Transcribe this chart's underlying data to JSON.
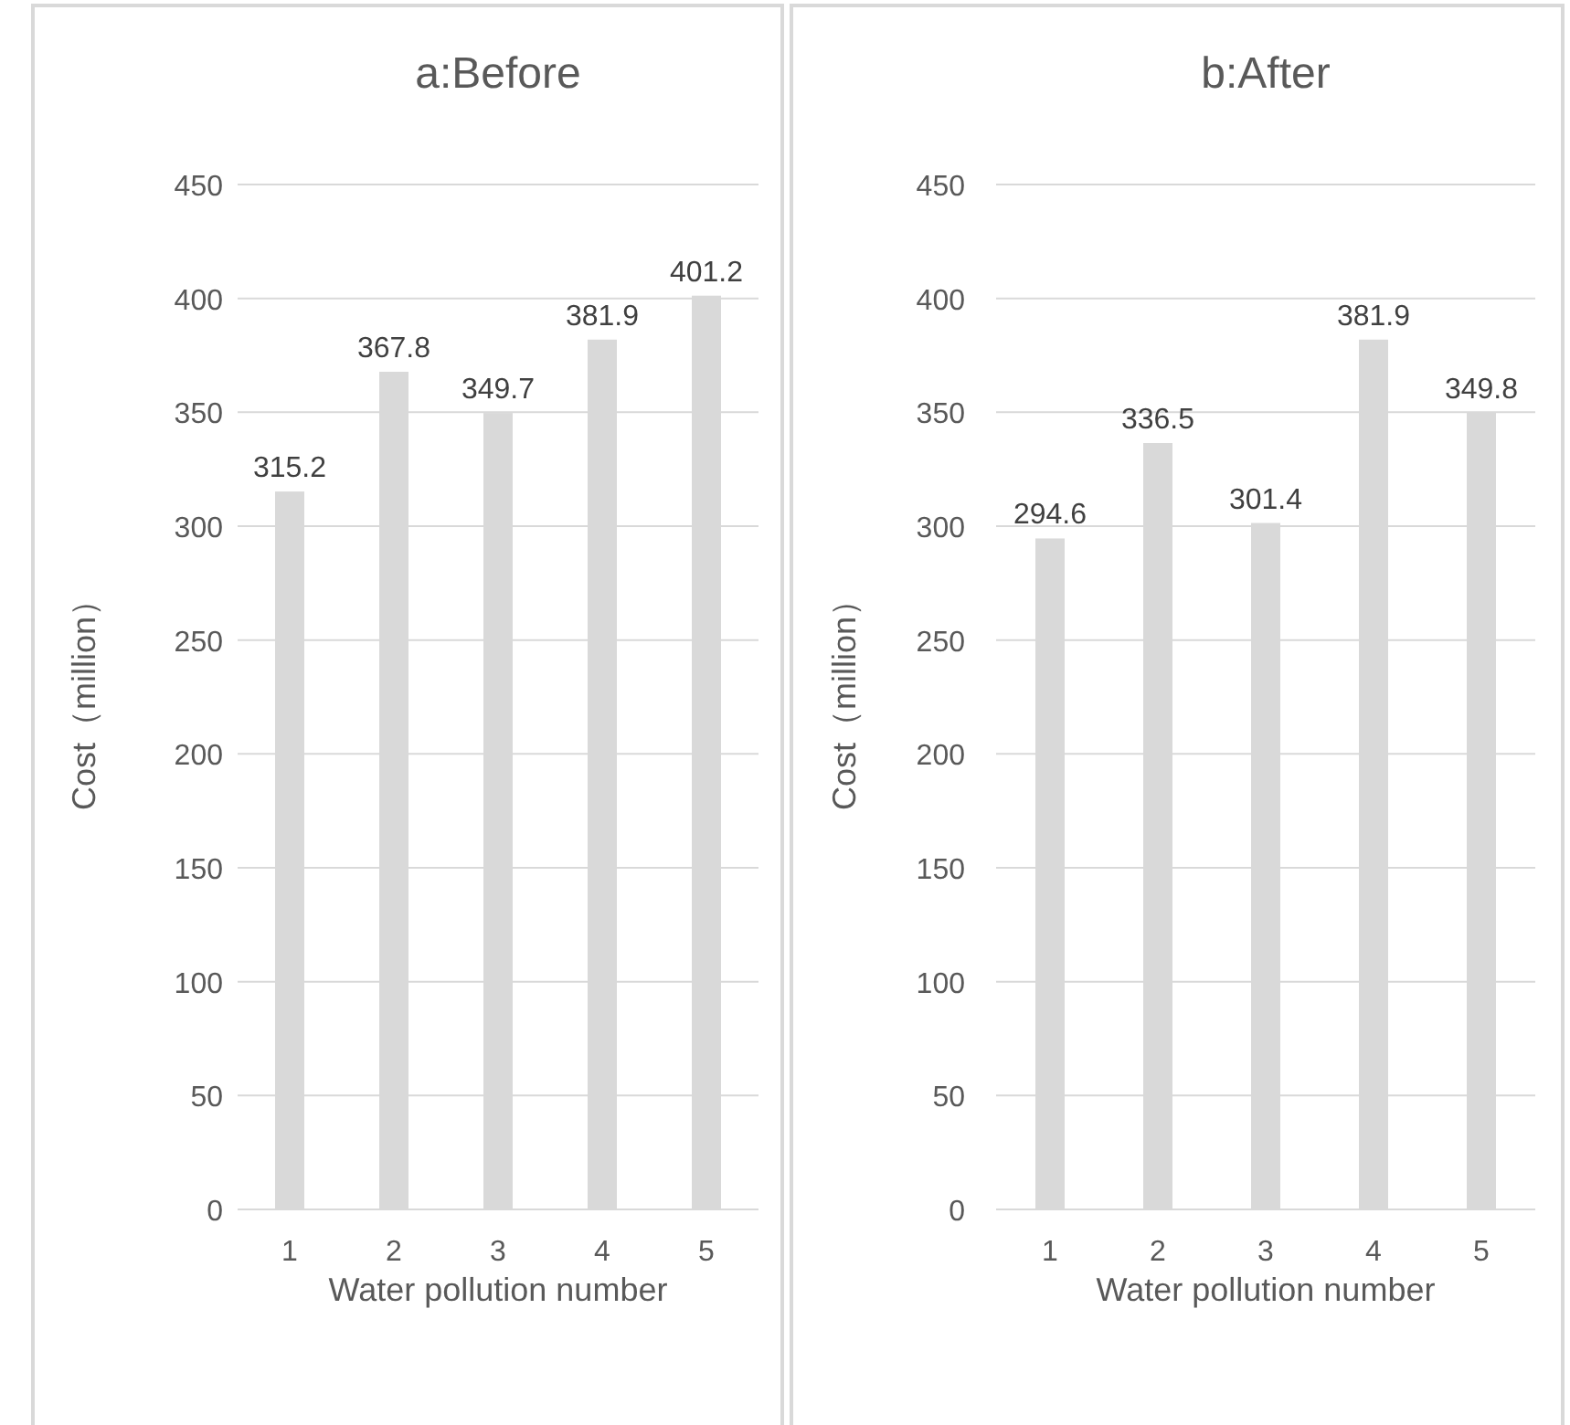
{
  "chart_data": [
    {
      "type": "bar",
      "title": "a:Before",
      "xlabel": "Water pollution number",
      "ylabel": "Cost（million）",
      "categories": [
        "1",
        "2",
        "3",
        "4",
        "5"
      ],
      "values": [
        315.2,
        367.8,
        349.7,
        381.9,
        401.2
      ],
      "color": "#d9d9d9",
      "ylim": [
        0,
        450
      ],
      "yticks": [
        0,
        50,
        100,
        150,
        200,
        250,
        300,
        350,
        400,
        450
      ],
      "grid": "y",
      "data_labels": true
    },
    {
      "type": "bar",
      "title": "b:After",
      "xlabel": "Water pollution number",
      "ylabel": "Cost（million）",
      "categories": [
        "1",
        "2",
        "3",
        "4",
        "5"
      ],
      "values": [
        294.6,
        336.5,
        301.4,
        381.9,
        349.8
      ],
      "color": "#d9d9d9",
      "ylim": [
        0,
        450
      ],
      "yticks": [
        0,
        50,
        100,
        150,
        200,
        250,
        300,
        350,
        400,
        450
      ],
      "grid": "y",
      "data_labels": true
    }
  ]
}
